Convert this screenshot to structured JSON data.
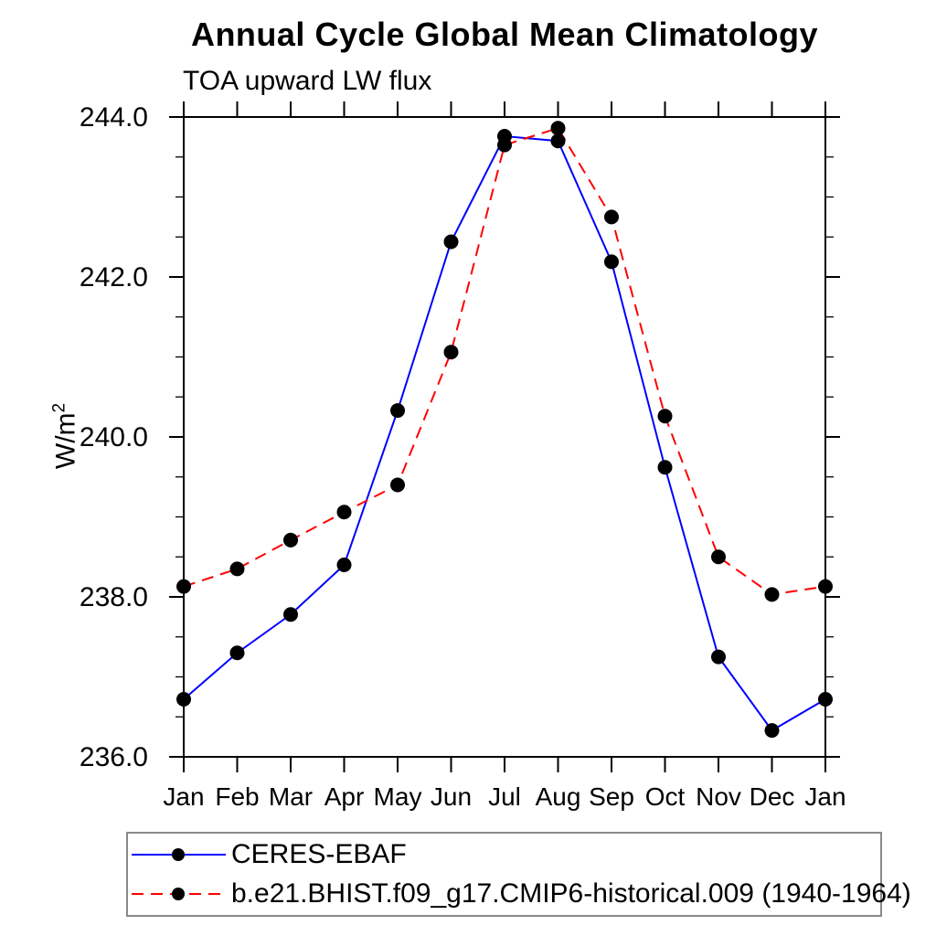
{
  "page": {
    "background": "#ffffff"
  },
  "chart": {
    "title": "Annual Cycle Global Mean Climatology",
    "subtitle": "TOA upward LW flux",
    "ylabel_base": "W/m",
    "ylabel_sup": "2"
  },
  "chart_data": {
    "type": "line",
    "title": "Annual Cycle Global Mean Climatology",
    "subtitle": "TOA upward LW flux",
    "xlabel": "",
    "ylabel": "W/m²",
    "categories": [
      "Jan",
      "Feb",
      "Mar",
      "Apr",
      "May",
      "Jun",
      "Jul",
      "Aug",
      "Sep",
      "Oct",
      "Nov",
      "Dec",
      "Jan"
    ],
    "ylim": [
      236.0,
      244.0
    ],
    "y_major_step": 2.0,
    "y_minor_step": 0.5,
    "y_major_labels": [
      "236.0",
      "238.0",
      "240.0",
      "242.0",
      "244.0"
    ],
    "grid": false,
    "legend_position": "bottom-left",
    "axis_color": "#000000",
    "series": [
      {
        "name": "CERES-EBAF",
        "color": "#0000ff",
        "style": "solid",
        "marker": "circle",
        "marker_color": "#000000",
        "values": [
          236.72,
          237.3,
          237.78,
          238.4,
          240.33,
          242.44,
          243.76,
          243.7,
          242.19,
          239.62,
          237.25,
          236.33,
          236.72
        ]
      },
      {
        "name": "b.e21.BHIST.f09_g17.CMIP6-historical.009 (1940-1964)",
        "color": "#ff0000",
        "style": "dashed",
        "marker": "circle",
        "marker_color": "#000000",
        "values": [
          238.13,
          238.35,
          238.71,
          239.06,
          239.4,
          241.06,
          243.65,
          243.86,
          242.75,
          240.26,
          238.5,
          238.03,
          238.13
        ]
      }
    ]
  }
}
